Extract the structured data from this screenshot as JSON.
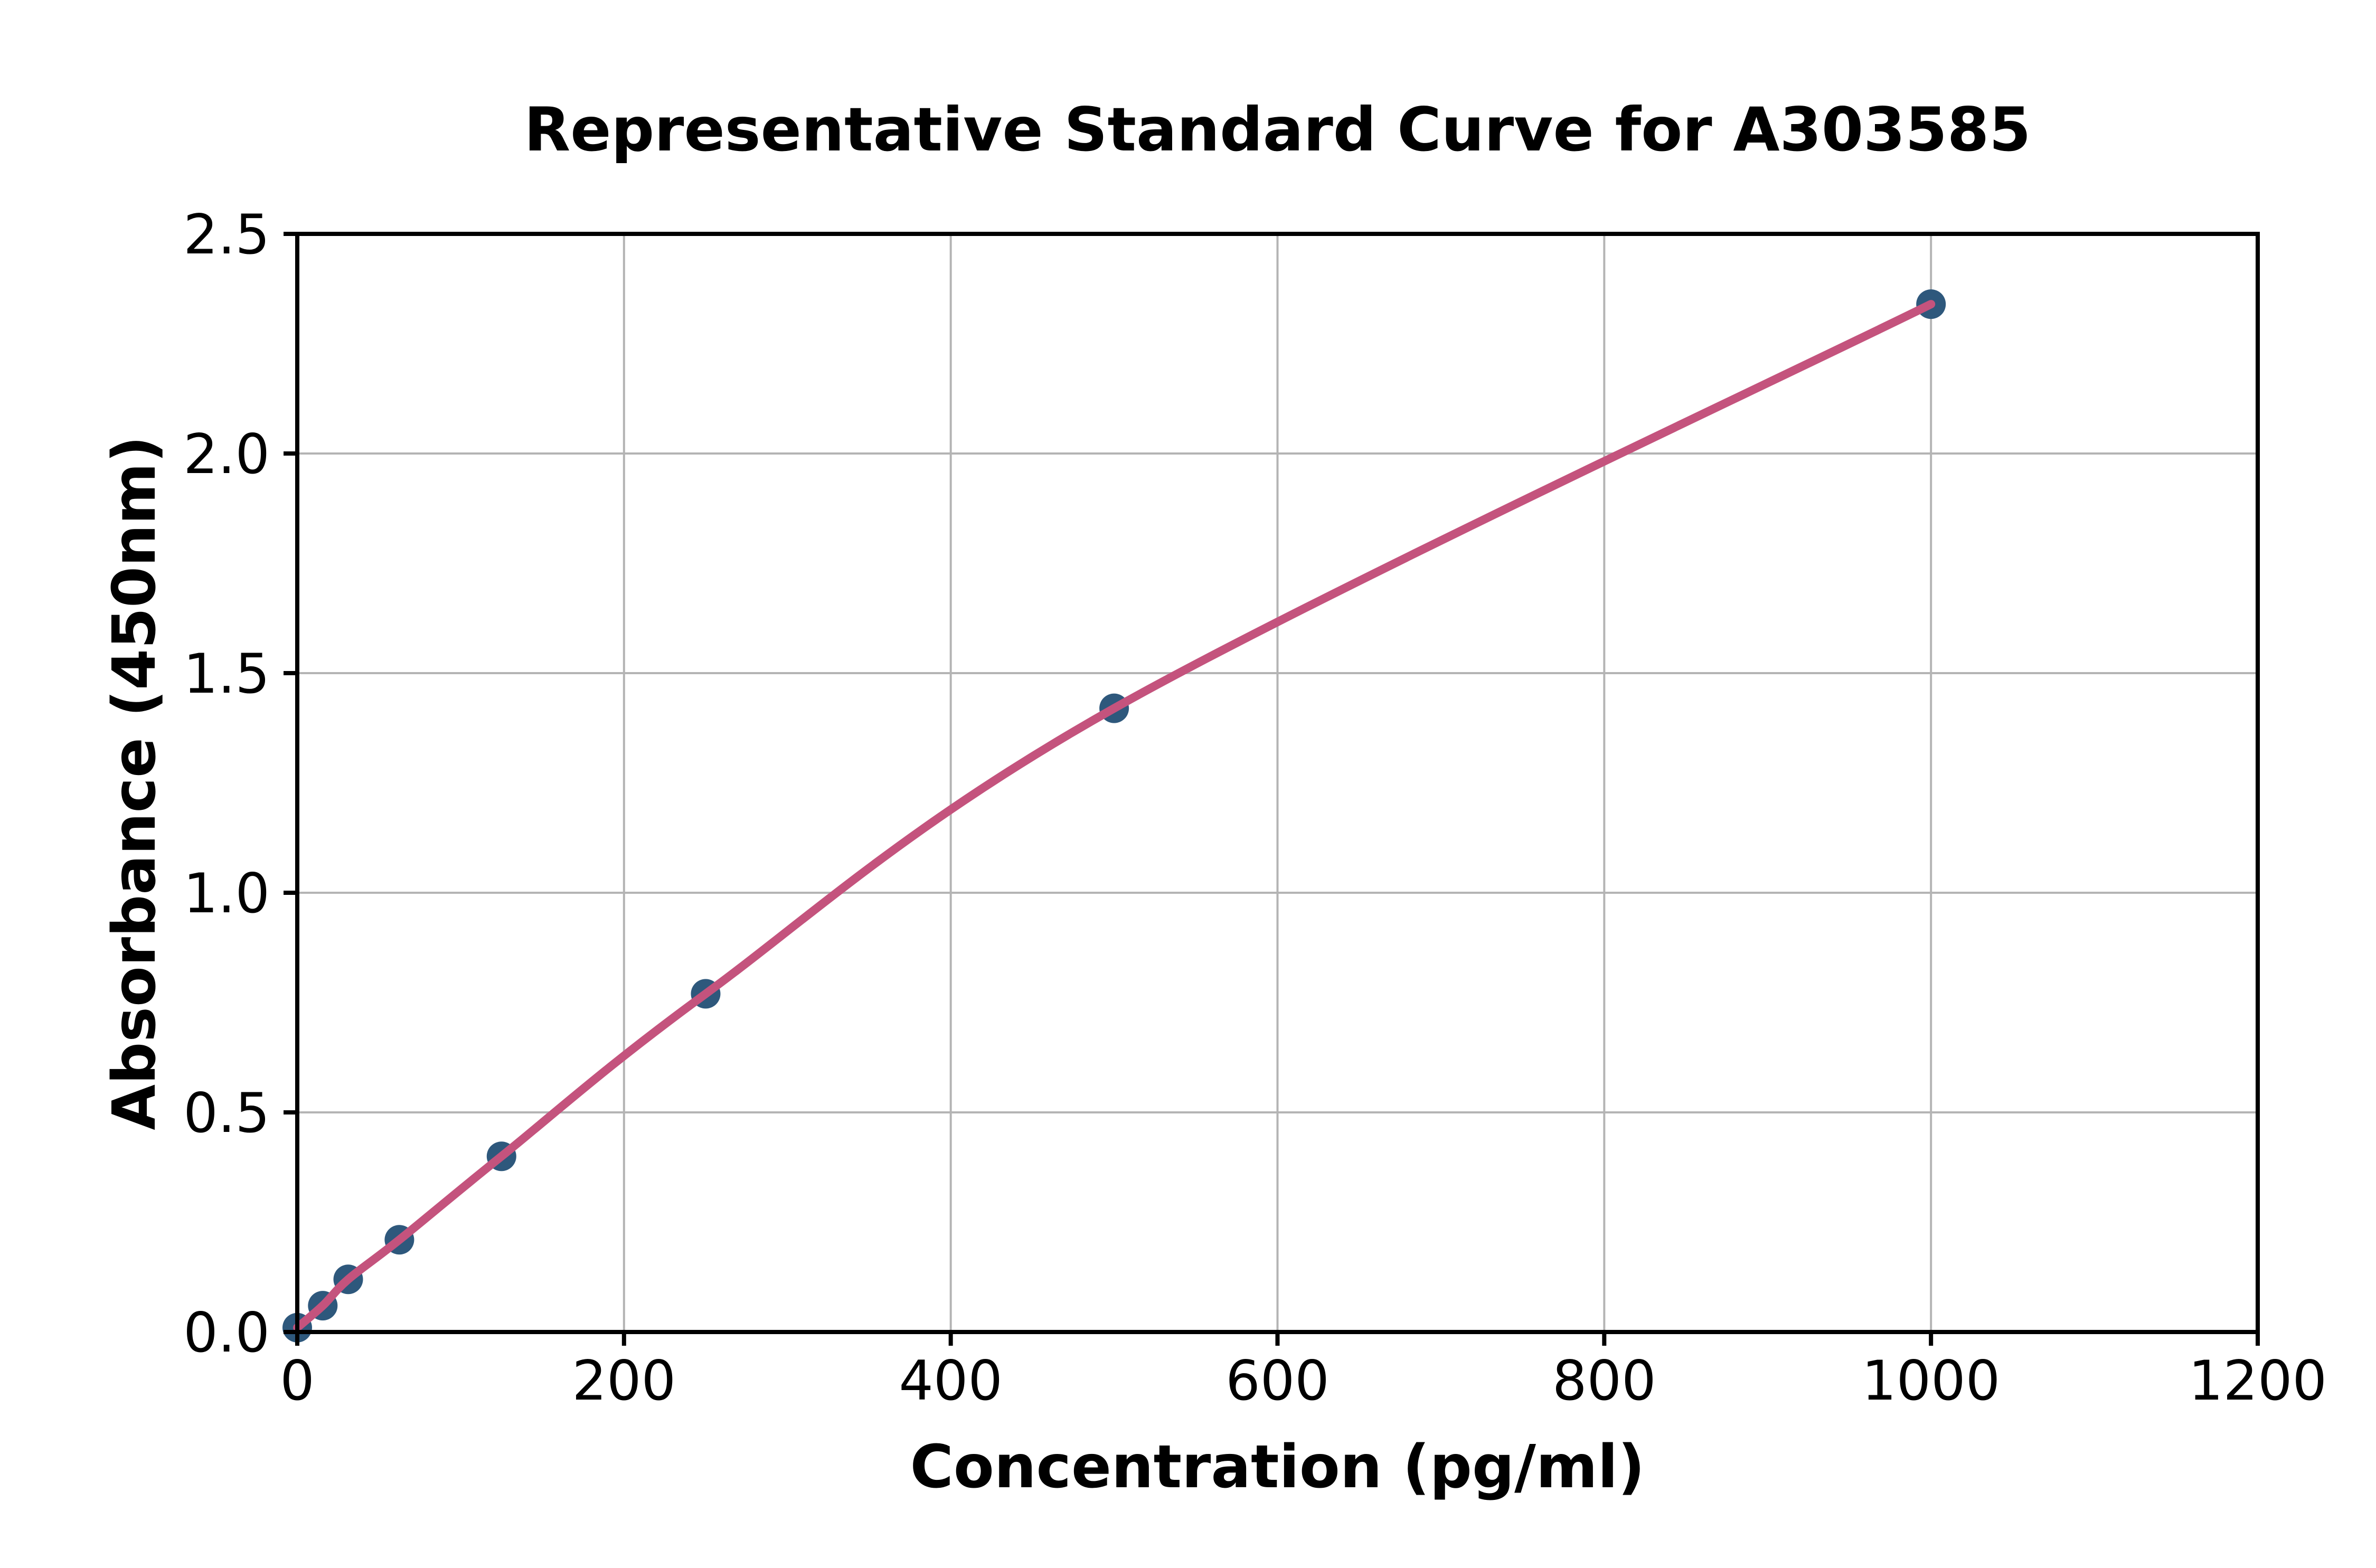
{
  "page": {
    "background": "#ffffff"
  },
  "chart_data": {
    "type": "scatter",
    "title": "Representative Standard Curve for A303585",
    "xlabel": "Concentration (pg/ml)",
    "ylabel": "Absorbance (450nm)",
    "xlim": [
      0,
      1200
    ],
    "ylim": [
      0.0,
      2.5
    ],
    "x_ticks": [
      0,
      200,
      400,
      600,
      800,
      1000,
      1200
    ],
    "y_ticks": [
      0.0,
      0.5,
      1.0,
      1.5,
      2.0,
      2.5
    ],
    "grid": true,
    "legend": false,
    "series": [
      {
        "name": "standards",
        "points": [
          {
            "x": 0,
            "y": 0.01
          },
          {
            "x": 15.6,
            "y": 0.06
          },
          {
            "x": 31.2,
            "y": 0.12
          },
          {
            "x": 62.5,
            "y": 0.21
          },
          {
            "x": 125,
            "y": 0.4
          },
          {
            "x": 250,
            "y": 0.77
          },
          {
            "x": 500,
            "y": 1.42
          },
          {
            "x": 1000,
            "y": 2.34
          }
        ]
      }
    ],
    "fit_curve": {
      "description": "smooth fitted curve through all standard points",
      "color": "#c4537d"
    },
    "colors": {
      "marker": "#2e587c",
      "curve": "#c4537d",
      "grid": "#b4b4b4",
      "axis": "#000000",
      "text": "#000000",
      "background": "#ffffff"
    }
  }
}
